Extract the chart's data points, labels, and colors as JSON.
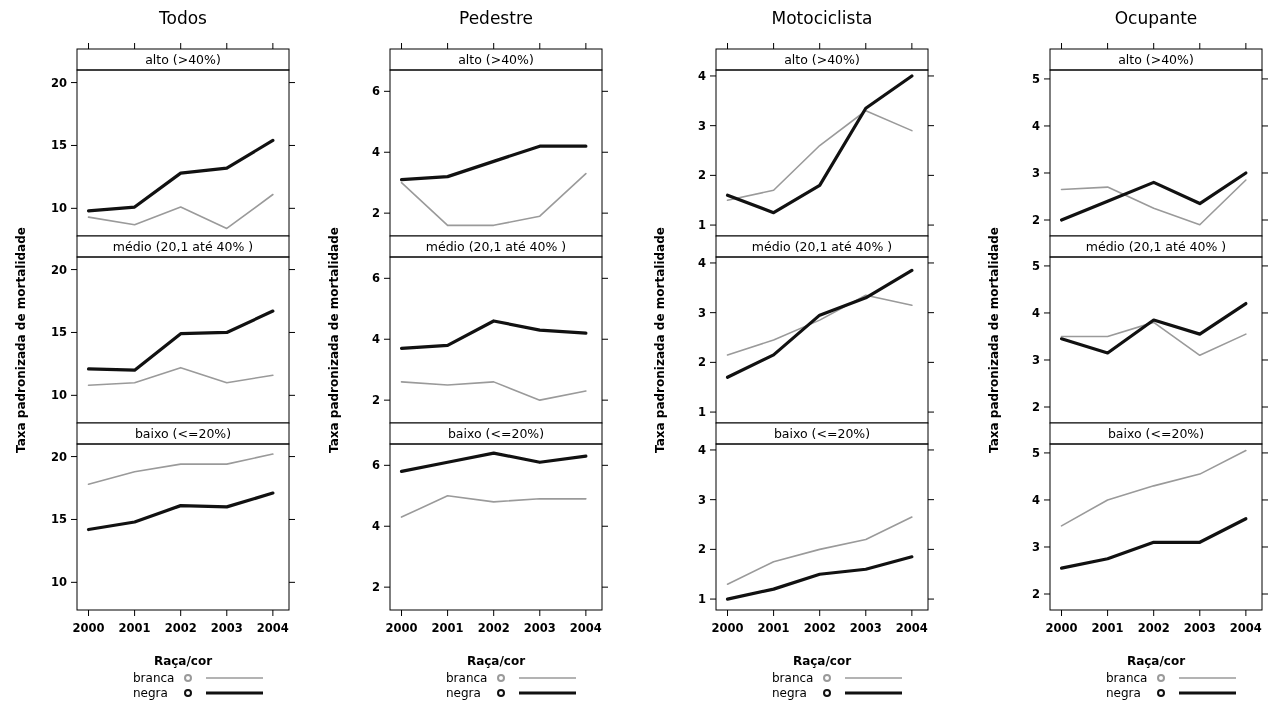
{
  "chart_data": [
    {
      "type": "line",
      "title": "Todos",
      "subtitle": "alto (>40%)",
      "x": [
        2000,
        2001,
        2002,
        2003,
        2004
      ],
      "xlim": [
        1999.75,
        2004.35
      ],
      "xticks": [
        2000,
        2001,
        2002,
        2003,
        2004
      ],
      "ylim": [
        7.8,
        21
      ],
      "yticks": [
        10,
        15,
        20
      ],
      "tick_labels": "y",
      "legend": false,
      "series": [
        {
          "color": "#9a9a9a",
          "values": [
            9.3,
            8.7,
            10.1,
            8.4,
            11.1
          ]
        },
        {
          "color": "#111111",
          "values": [
            9.8,
            10.1,
            12.8,
            13.2,
            15.4
          ]
        }
      ]
    },
    {
      "type": "line",
      "subtitle": "médio (20,1 até 40%   )",
      "ylabel": "Taxa padronizada de mortalidade",
      "x": [
        2000,
        2001,
        2002,
        2003,
        2004
      ],
      "xlim": [
        1999.75,
        2004.35
      ],
      "ylim": [
        7.8,
        21
      ],
      "yticks": [
        10,
        15,
        20
      ],
      "tick_labels": "y",
      "legend": false,
      "series": [
        {
          "color": "#9a9a9a",
          "values": [
            10.8,
            11.0,
            12.2,
            11.0,
            11.6
          ]
        },
        {
          "color": "#111111",
          "values": [
            12.1,
            12.0,
            14.9,
            15.0,
            16.7
          ]
        }
      ]
    },
    {
      "type": "line",
      "subtitle": "baixo (<=20%)",
      "legend_title": "Raça/cor",
      "x": [
        2000,
        2001,
        2002,
        2003,
        2004
      ],
      "xlim": [
        1999.75,
        2004.35
      ],
      "xticks": [
        2000,
        2001,
        2002,
        2003,
        2004
      ],
      "ylim": [
        7.8,
        21
      ],
      "yticks": [
        10,
        15,
        20
      ],
      "legend": "bottom",
      "series": [
        {
          "name": "branca",
          "color": "#9a9a9a",
          "values": [
            17.8,
            18.8,
            19.4,
            19.4,
            20.2
          ]
        },
        {
          "name": "negra",
          "color": "#111111",
          "values": [
            14.2,
            14.8,
            16.1,
            16.0,
            17.1
          ]
        }
      ]
    },
    {
      "type": "line",
      "title": "Pedestre",
      "subtitle": "alto (>40%)",
      "x": [
        2000,
        2001,
        2002,
        2003,
        2004
      ],
      "xlim": [
        1999.75,
        2004.35
      ],
      "xticks": [
        2000,
        2001,
        2002,
        2003,
        2004
      ],
      "ylim": [
        1.25,
        6.7
      ],
      "yticks": [
        2,
        4,
        6
      ],
      "tick_labels": "y",
      "legend": false,
      "series": [
        {
          "color": "#9a9a9a",
          "values": [
            3.0,
            1.6,
            1.6,
            1.9,
            3.3
          ]
        },
        {
          "color": "#111111",
          "values": [
            3.1,
            3.2,
            3.7,
            4.2,
            4.2
          ]
        }
      ]
    },
    {
      "type": "line",
      "subtitle": "médio (20,1 até 40%   )",
      "ylabel": "Taxa padronizada de mortalidade",
      "x": [
        2000,
        2001,
        2002,
        2003,
        2004
      ],
      "xlim": [
        1999.75,
        2004.35
      ],
      "ylim": [
        1.25,
        6.7
      ],
      "yticks": [
        2,
        4,
        6
      ],
      "tick_labels": "y",
      "legend": false,
      "series": [
        {
          "color": "#9a9a9a",
          "values": [
            2.6,
            2.5,
            2.6,
            2.0,
            2.3
          ]
        },
        {
          "color": "#111111",
          "values": [
            3.7,
            3.8,
            4.6,
            4.3,
            4.2
          ]
        }
      ]
    },
    {
      "type": "line",
      "subtitle": "baixo (<=20%)",
      "legend_title": "Raça/cor",
      "x": [
        2000,
        2001,
        2002,
        2003,
        2004
      ],
      "xlim": [
        1999.75,
        2004.35
      ],
      "xticks": [
        2000,
        2001,
        2002,
        2003,
        2004
      ],
      "ylim": [
        1.25,
        6.7
      ],
      "yticks": [
        2,
        4,
        6
      ],
      "legend": "bottom",
      "series": [
        {
          "name": "branca",
          "color": "#9a9a9a",
          "values": [
            4.3,
            5.0,
            4.8,
            4.9,
            4.9
          ]
        },
        {
          "name": "negra",
          "color": "#111111",
          "values": [
            5.8,
            6.1,
            6.4,
            6.1,
            6.3
          ]
        }
      ]
    },
    {
      "type": "line",
      "title": "Motociclista",
      "subtitle": "alto (>40%)",
      "x": [
        2000,
        2001,
        2002,
        2003,
        2004
      ],
      "xlim": [
        1999.75,
        2004.35
      ],
      "xticks": [
        2000,
        2001,
        2002,
        2003,
        2004
      ],
      "ylim": [
        0.78,
        4.12
      ],
      "yticks": [
        1,
        2,
        3,
        4
      ],
      "tick_labels": "y",
      "legend": false,
      "series": [
        {
          "color": "#9a9a9a",
          "values": [
            1.5,
            1.7,
            2.6,
            3.3,
            2.9
          ]
        },
        {
          "color": "#111111",
          "values": [
            1.6,
            1.25,
            1.8,
            3.35,
            4.0
          ]
        }
      ]
    },
    {
      "type": "line",
      "subtitle": "médio (20,1 até 40%   )",
      "ylabel": "Taxa padronizada de mortalidade",
      "x": [
        2000,
        2001,
        2002,
        2003,
        2004
      ],
      "xlim": [
        1999.75,
        2004.35
      ],
      "ylim": [
        0.78,
        4.12
      ],
      "yticks": [
        1,
        2,
        3,
        4
      ],
      "tick_labels": "y",
      "legend": false,
      "series": [
        {
          "color": "#9a9a9a",
          "values": [
            2.15,
            2.45,
            2.85,
            3.35,
            3.15
          ]
        },
        {
          "color": "#111111",
          "values": [
            1.7,
            2.15,
            2.95,
            3.3,
            3.85
          ]
        }
      ]
    },
    {
      "type": "line",
      "subtitle": "baixo (<=20%)",
      "legend_title": "Raça/cor",
      "x": [
        2000,
        2001,
        2002,
        2003,
        2004
      ],
      "xlim": [
        1999.75,
        2004.35
      ],
      "xticks": [
        2000,
        2001,
        2002,
        2003,
        2004
      ],
      "ylim": [
        0.78,
        4.12
      ],
      "yticks": [
        1,
        2,
        3,
        4
      ],
      "legend": "bottom",
      "series": [
        {
          "name": "branca",
          "color": "#9a9a9a",
          "values": [
            1.3,
            1.75,
            2.0,
            2.2,
            2.65
          ]
        },
        {
          "name": "negra",
          "color": "#111111",
          "values": [
            1.0,
            1.2,
            1.5,
            1.6,
            1.85
          ]
        }
      ]
    },
    {
      "type": "line",
      "title": "Ocupante",
      "subtitle": "alto (>40%)",
      "x": [
        2000,
        2001,
        2002,
        2003,
        2004
      ],
      "xlim": [
        1999.75,
        2004.35
      ],
      "xticks": [
        2000,
        2001,
        2002,
        2003,
        2004
      ],
      "ylim": [
        1.66,
        5.19
      ],
      "yticks": [
        2,
        3,
        4,
        5
      ],
      "tick_labels": "y",
      "legend": false,
      "series": [
        {
          "color": "#9a9a9a",
          "values": [
            2.65,
            2.7,
            2.25,
            1.9,
            2.85
          ]
        },
        {
          "color": "#111111",
          "values": [
            2.0,
            2.4,
            2.8,
            2.35,
            3.0
          ]
        }
      ]
    },
    {
      "type": "line",
      "subtitle": "médio (20,1 até 40%   )",
      "ylabel": "Taxa padronizada de mortalidade",
      "x": [
        2000,
        2001,
        2002,
        2003,
        2004
      ],
      "xlim": [
        1999.75,
        2004.35
      ],
      "ylim": [
        1.66,
        5.19
      ],
      "yticks": [
        2,
        3,
        4,
        5
      ],
      "tick_labels": "y",
      "legend": false,
      "series": [
        {
          "color": "#9a9a9a",
          "values": [
            3.5,
            3.5,
            3.8,
            3.1,
            3.55
          ]
        },
        {
          "color": "#111111",
          "values": [
            3.45,
            3.15,
            3.85,
            3.55,
            4.2
          ]
        }
      ]
    },
    {
      "type": "line",
      "subtitle": "baixo (<=20%)",
      "legend_title": "Raça/cor",
      "x": [
        2000,
        2001,
        2002,
        2003,
        2004
      ],
      "xlim": [
        1999.75,
        2004.35
      ],
      "xticks": [
        2000,
        2001,
        2002,
        2003,
        2004
      ],
      "ylim": [
        1.66,
        5.19
      ],
      "yticks": [
        2,
        3,
        4,
        5
      ],
      "legend": "bottom",
      "series": [
        {
          "name": "branca",
          "color": "#9a9a9a",
          "values": [
            3.45,
            4.0,
            4.3,
            4.55,
            5.05
          ]
        },
        {
          "name": "negra",
          "color": "#111111",
          "values": [
            2.55,
            2.75,
            3.1,
            3.1,
            3.6
          ]
        }
      ]
    }
  ]
}
